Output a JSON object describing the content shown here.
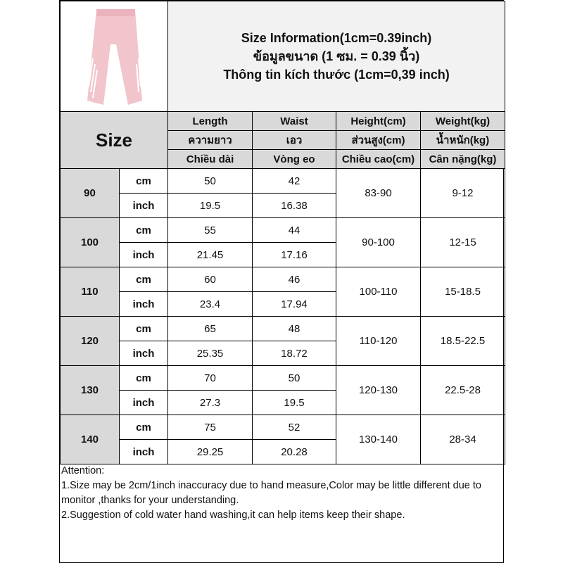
{
  "header": {
    "title_lines": [
      "Size Information(1cm=0.39inch)",
      "ข้อมูลขนาด (1 ซม. = 0.39 นิ้ว)",
      "Thông tin kích thước (1cm=0,39 inch)"
    ]
  },
  "columns": {
    "size_label": "Size",
    "headers": [
      [
        "Length",
        "ความยาว",
        "Chiều dài"
      ],
      [
        "Waist",
        "เอว",
        "Vòng eo"
      ],
      [
        "Height(cm)",
        "ส่วนสูง(cm)",
        "Chiều cao(cm)"
      ],
      [
        "Weight(kg)",
        "น้ำหนัก(kg)",
        "Cân nặng(kg)"
      ]
    ]
  },
  "units": [
    "cm",
    "inch"
  ],
  "rows": [
    {
      "size": "90",
      "cm": [
        "50",
        "42"
      ],
      "inch": [
        "19.5",
        "16.38"
      ],
      "height": "83-90",
      "weight": "9-12"
    },
    {
      "size": "100",
      "cm": [
        "55",
        "44"
      ],
      "inch": [
        "21.45",
        "17.16"
      ],
      "height": "90-100",
      "weight": "12-15"
    },
    {
      "size": "110",
      "cm": [
        "60",
        "46"
      ],
      "inch": [
        "23.4",
        "17.94"
      ],
      "height": "100-110",
      "weight": "15-18.5"
    },
    {
      "size": "120",
      "cm": [
        "65",
        "48"
      ],
      "inch": [
        "25.35",
        "18.72"
      ],
      "height": "110-120",
      "weight": "18.5-22.5"
    },
    {
      "size": "130",
      "cm": [
        "70",
        "50"
      ],
      "inch": [
        "27.3",
        "19.5"
      ],
      "height": "120-130",
      "weight": "22.5-28"
    },
    {
      "size": "140",
      "cm": [
        "75",
        "52"
      ],
      "inch": [
        "29.25",
        "20.28"
      ],
      "height": "130-140",
      "weight": "28-34"
    }
  ],
  "attention": {
    "title": "Attention:",
    "lines": [
      "1.Size may be 2cm/1inch inaccuracy due to hand measure,Color may be little different due to monitor ,thanks for your understanding.",
      "2.Suggestion of cold water hand washing,it can help items keep their shape."
    ]
  },
  "colors": {
    "header_gray": "#d9d9d9",
    "title_bg": "#f2f2f2",
    "pants_pink": "#f2c4cc"
  }
}
